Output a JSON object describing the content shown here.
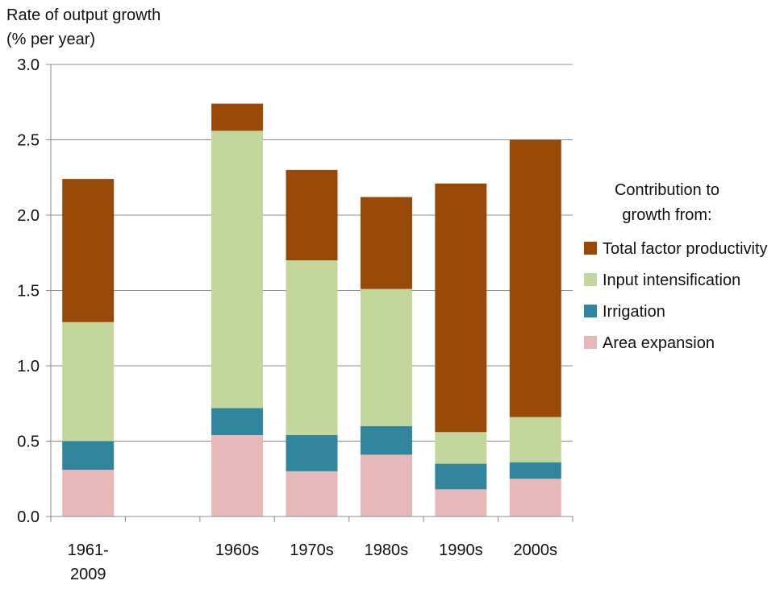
{
  "chart_data": {
    "type": "bar",
    "stacked": true,
    "ylabel": [
      "Rate of output growth",
      "(% per year)"
    ],
    "ylim": [
      0,
      3.0
    ],
    "yticks": [
      "0.0",
      "0.5",
      "1.0",
      "1.5",
      "2.0",
      "2.5",
      "3.0"
    ],
    "grid": true,
    "categories": [
      [
        "1961-",
        "2009"
      ],
      [
        ""
      ],
      [
        "1960s"
      ],
      [
        "1970s"
      ],
      [
        "1980s"
      ],
      [
        "1990s"
      ],
      [
        "2000s"
      ]
    ],
    "series": [
      {
        "name": "Area expansion",
        "color": "#e6b9b8",
        "values": [
          0.31,
          null,
          0.54,
          0.3,
          0.41,
          0.18,
          0.25
        ]
      },
      {
        "name": "Irrigation",
        "color": "#31859c",
        "values": [
          0.19,
          null,
          0.18,
          0.24,
          0.19,
          0.17,
          0.11
        ]
      },
      {
        "name": "Input intensification",
        "color": "#c3d69b",
        "values": [
          0.79,
          null,
          1.84,
          1.16,
          0.91,
          0.21,
          0.3
        ]
      },
      {
        "name": "Total factor productivity",
        "color": "#984807",
        "values": [
          0.95,
          null,
          0.18,
          0.6,
          0.61,
          1.65,
          1.84
        ]
      }
    ],
    "legend": {
      "title": [
        "Contribution to",
        "growth from:"
      ],
      "placement": "right",
      "order": [
        "Total factor productivity",
        "Input intensification",
        "Irrigation",
        "Area expansion"
      ]
    }
  }
}
